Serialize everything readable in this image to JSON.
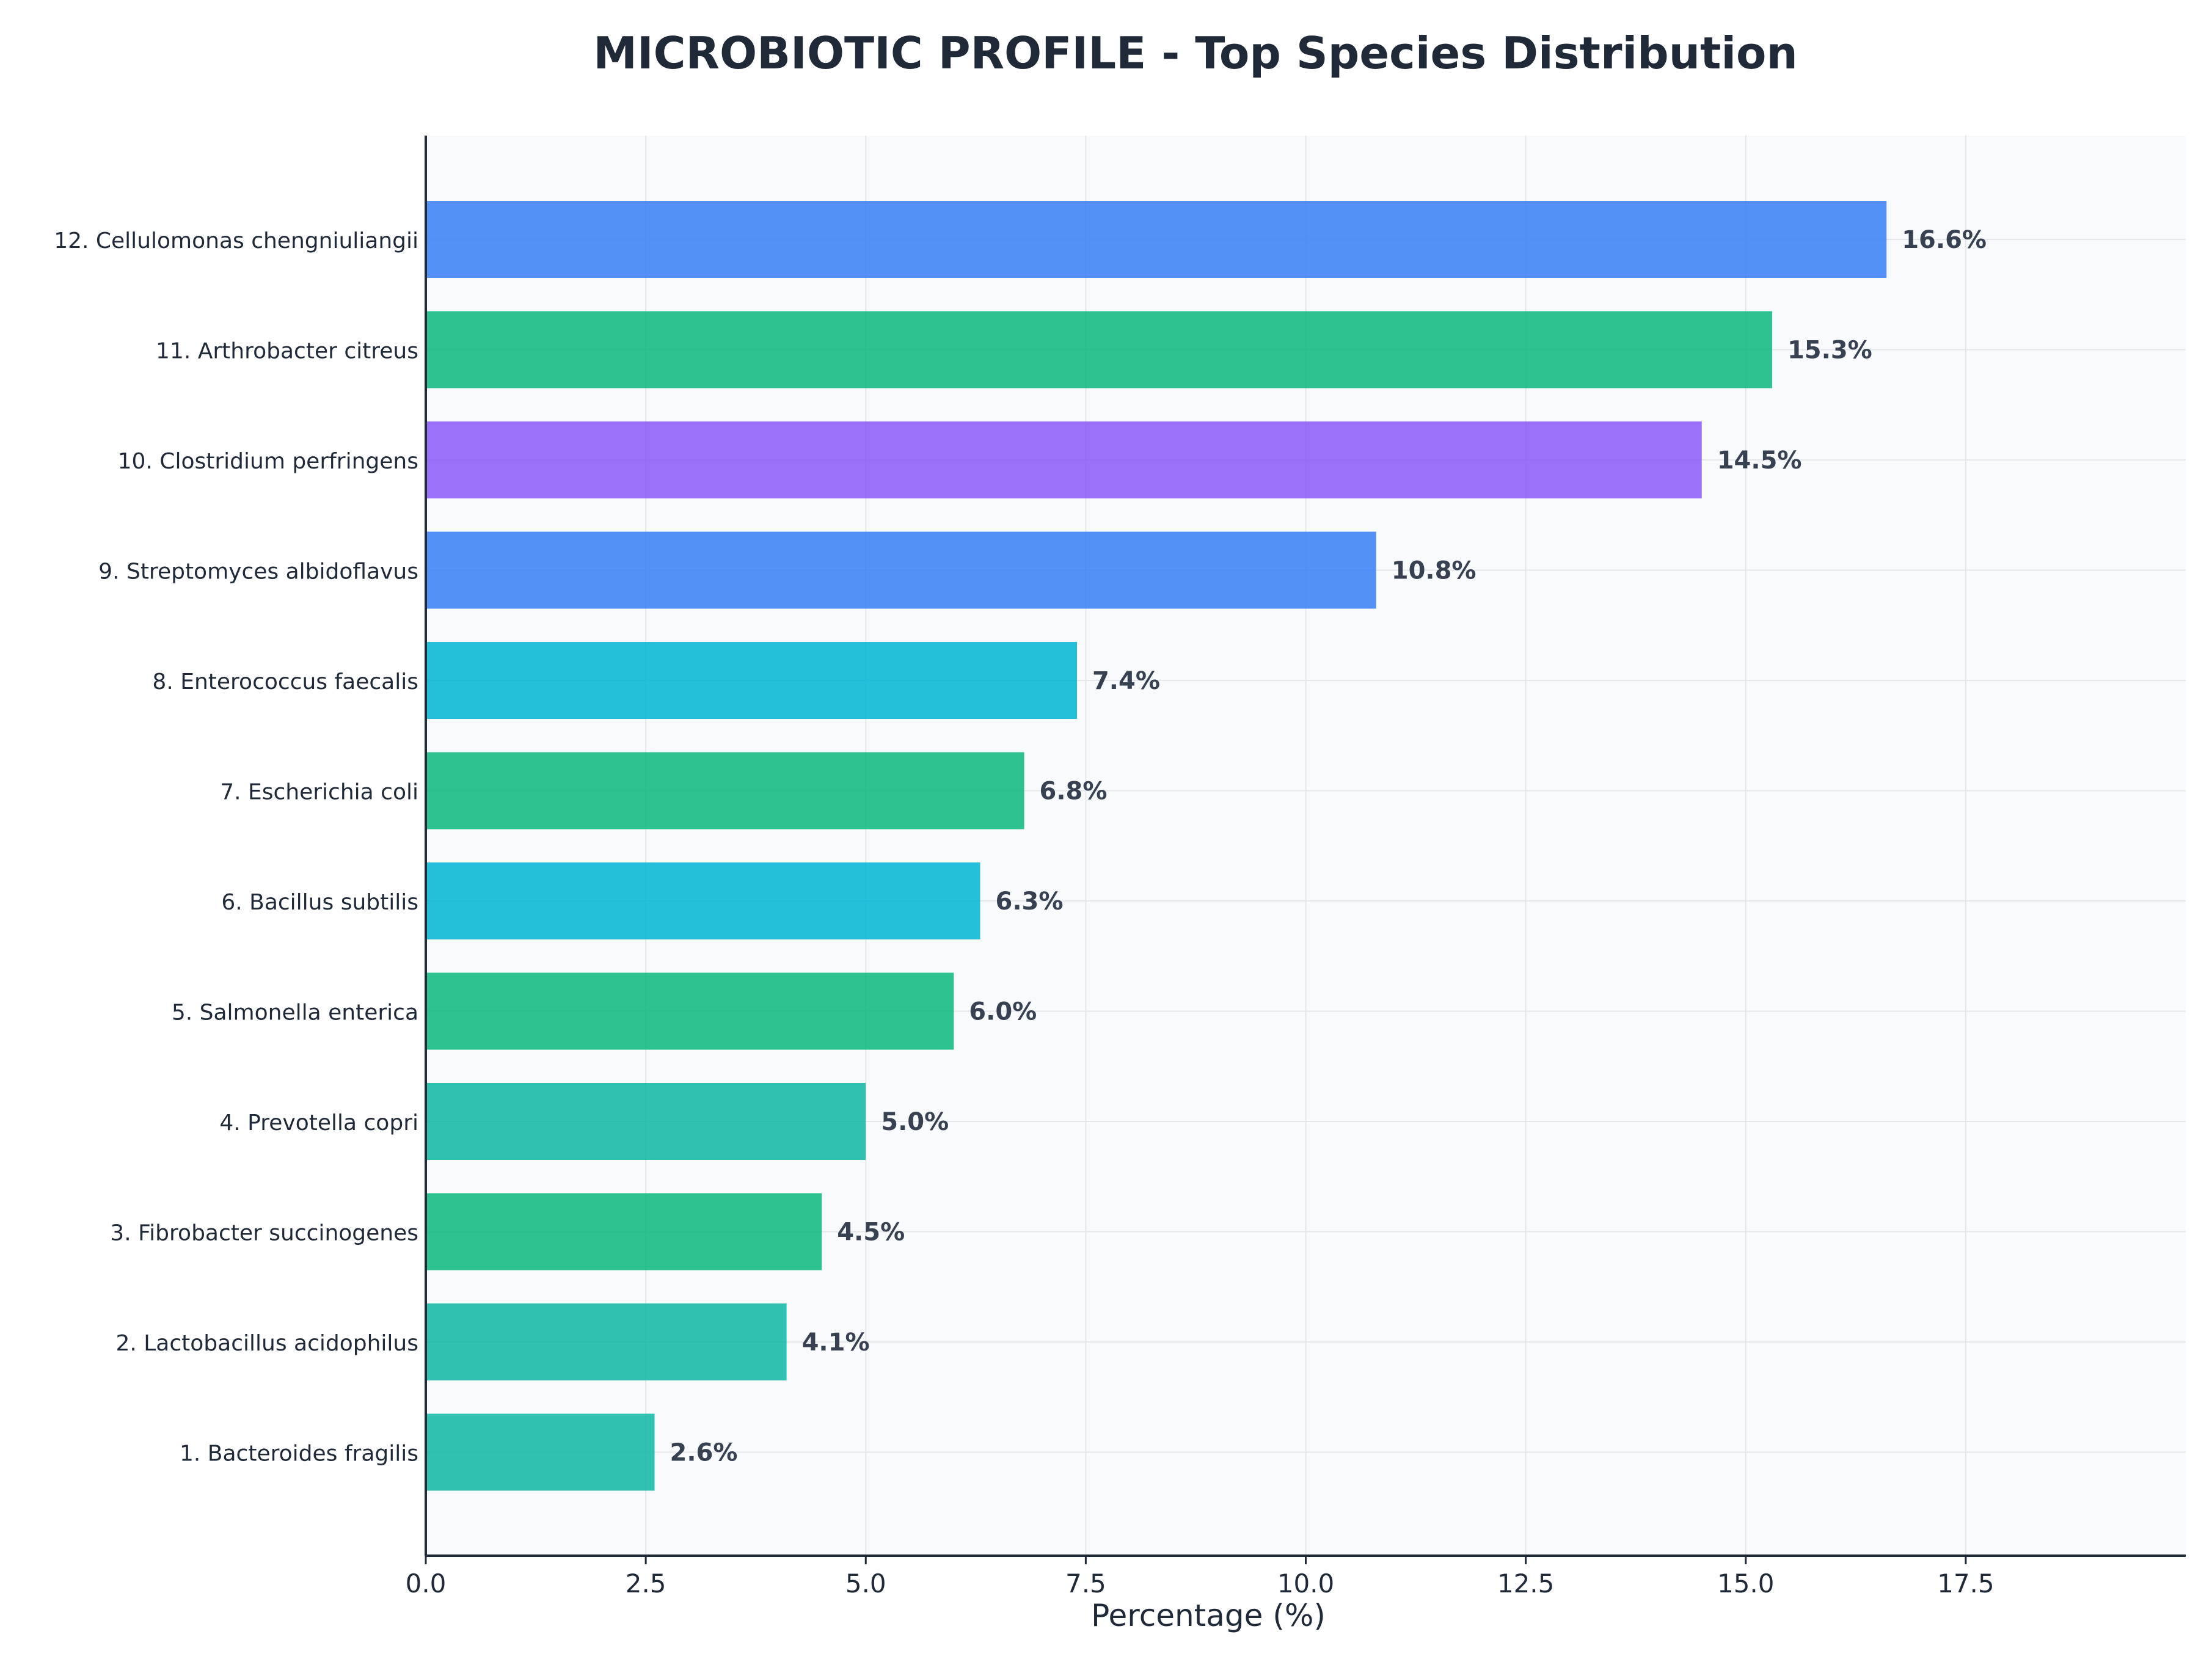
{
  "chart_data": {
    "type": "bar",
    "orientation": "horizontal",
    "title": "MICROBIOTIC PROFILE - Top Species Distribution",
    "xlabel": "Percentage (%)",
    "ylabel": "",
    "xlim": [
      0,
      20
    ],
    "xticks": [
      0.0,
      2.5,
      5.0,
      7.5,
      10.0,
      12.5,
      15.0,
      17.5
    ],
    "xtick_labels": [
      "0.0",
      "2.5",
      "5.0",
      "7.5",
      "10.0",
      "12.5",
      "15.0",
      "17.5"
    ],
    "grid": true,
    "categories": [
      "12. Cellulomonas chengniuliangii",
      "11. Arthrobacter citreus",
      "10. Clostridium perfringens",
      "9. Streptomyces albidoflavus",
      "8. Enterococcus faecalis",
      "7. Escherichia coli",
      "6. Bacillus subtilis",
      "5. Salmonella enterica",
      "4. Prevotella copri",
      "3. Fibrobacter succinogenes",
      "2. Lactobacillus acidophilus",
      "1. Bacteroides fragilis"
    ],
    "values": [
      16.6,
      15.3,
      14.5,
      10.8,
      7.4,
      6.8,
      6.3,
      6.0,
      5.0,
      4.5,
      4.1,
      2.6
    ],
    "value_labels": [
      "16.6%",
      "15.3%",
      "14.5%",
      "10.8%",
      "7.4%",
      "6.8%",
      "6.3%",
      "6.0%",
      "5.0%",
      "4.5%",
      "4.1%",
      "2.6%"
    ],
    "colors": [
      "#3b82f6",
      "#10b981",
      "#8b5cf6",
      "#3b82f6",
      "#06b6d4",
      "#10b981",
      "#06b6d4",
      "#10b981",
      "#14b8a6",
      "#10b981",
      "#14b8a6",
      "#14b8a6"
    ],
    "background": "#f8fafc"
  }
}
